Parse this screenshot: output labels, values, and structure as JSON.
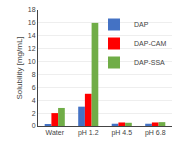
{
  "chart_data": {
    "type": "bar",
    "categories": [
      "Water",
      "pH 1.2",
      "pH 4.5",
      "pH 6.8"
    ],
    "series": [
      {
        "name": "DAP",
        "color": "#4472C4",
        "values": [
          0.3,
          3.0,
          0.35,
          0.35
        ]
      },
      {
        "name": "DAP-CAM",
        "color": "#FF0000",
        "values": [
          2.0,
          5.0,
          0.55,
          0.55
        ]
      },
      {
        "name": "DAP-SSA",
        "color": "#70AD47",
        "values": [
          2.8,
          16.0,
          0.5,
          0.6
        ]
      }
    ],
    "ylabel": "Solubility [mg/mL]",
    "ylim": [
      0,
      18
    ],
    "yticks": [
      0,
      2,
      4,
      6,
      8,
      10,
      12,
      14,
      16,
      18
    ],
    "grid": true,
    "legend": "upper right"
  }
}
